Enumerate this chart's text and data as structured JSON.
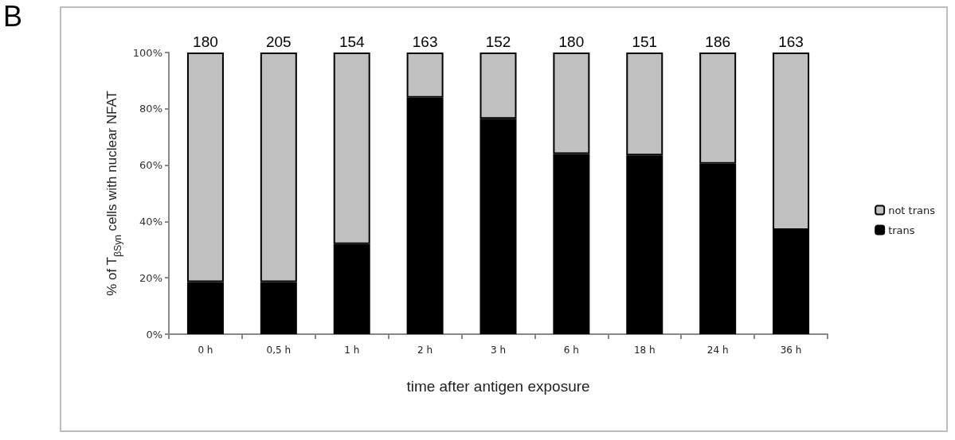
{
  "chart_data": {
    "type": "bar",
    "stacked": true,
    "xlabel": "time after antigen exposure",
    "ylabel": "% of T$_{βSyn}$ cells with nuclear NFAT",
    "annotations": [
      "B",
      {
        "text": "180",
        "x": "0 h",
        "y": 100
      },
      {
        "text": "205",
        "x": "0,5 h",
        "y": 100
      },
      {
        "text": "154",
        "x": "1 h",
        "y": 100
      },
      {
        "text": "163",
        "x": "2 h",
        "y": 100
      },
      {
        "text": "152",
        "x": "3 h",
        "y": 100
      },
      {
        "text": "180",
        "x": "6 h",
        "y": 100
      },
      {
        "text": "151",
        "x": "18 h",
        "y": 100
      },
      {
        "text": "186",
        "x": "24 h",
        "y": 100
      },
      {
        "text": "163",
        "x": "36 h",
        "y": 100
      }
    ],
    "categories": [
      "0 h",
      "0,5 h",
      "1 h",
      "2 h",
      "3 h",
      "6 h",
      "18 h",
      "24 h",
      "36 h"
    ],
    "series": [
      {
        "name": "trans",
        "color": "#000000",
        "values": [
          18.5,
          18.5,
          32,
          84,
          76.5,
          64,
          63.5,
          60.5,
          37
        ]
      },
      {
        "name": "not trans",
        "color": "#c0c0c0",
        "values": [
          81.5,
          81.5,
          68,
          16,
          23.5,
          36,
          36.5,
          39.5,
          63
        ]
      }
    ],
    "ylim": [
      0,
      100
    ],
    "yticks": [
      {
        "value": 0,
        "label": "0%"
      },
      {
        "value": 20,
        "label": "20%"
      },
      {
        "value": 40,
        "label": "40%"
      },
      {
        "value": 60,
        "label": "60%"
      },
      {
        "value": 80,
        "label": "80%"
      },
      {
        "value": 100,
        "label": "100%"
      }
    ],
    "grid": false,
    "legend": "right"
  }
}
